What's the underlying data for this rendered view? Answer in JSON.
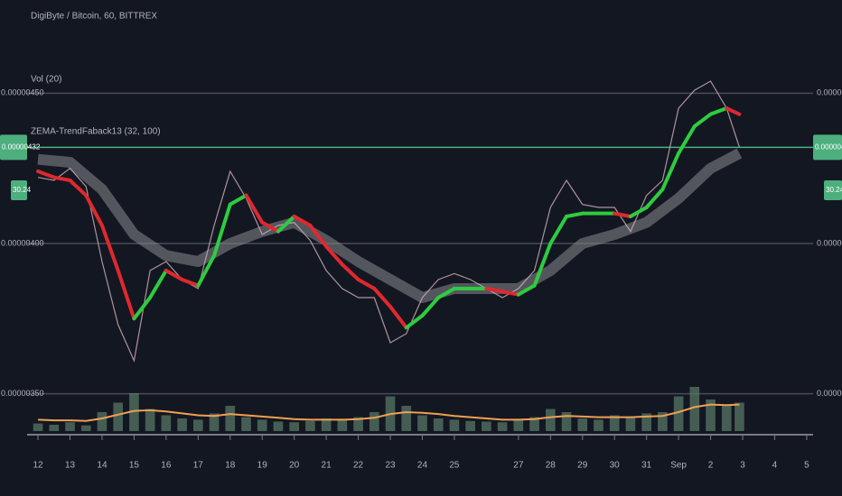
{
  "chart_data": {
    "type": "line",
    "title": "DigiByte / Bitcoin, 60, BITTREX",
    "volume_title": "Vol (20)",
    "indicator_title": "ZEMA-TrendFaback13 (32, 100)",
    "xlim": [
      -0.34,
      24.2
    ],
    "xticks": [
      {
        "value": 0,
        "label": "12"
      },
      {
        "value": 1,
        "label": "13"
      },
      {
        "value": 2,
        "label": "14"
      },
      {
        "value": 3,
        "label": "15"
      },
      {
        "value": 4,
        "label": "16"
      },
      {
        "value": 5,
        "label": "17"
      },
      {
        "value": 6,
        "label": "18"
      },
      {
        "value": 7,
        "label": "19"
      },
      {
        "value": 8,
        "label": "20"
      },
      {
        "value": 9,
        "label": "21"
      },
      {
        "value": 10,
        "label": "22"
      },
      {
        "value": 11,
        "label": "23"
      },
      {
        "value": 12,
        "label": "24"
      },
      {
        "value": 13,
        "label": "25"
      },
      {
        "value": 15,
        "label": "27"
      },
      {
        "value": 16,
        "label": "28"
      },
      {
        "value": 17,
        "label": "29"
      },
      {
        "value": 18,
        "label": "30"
      },
      {
        "value": 19,
        "label": "31"
      },
      {
        "value": 20,
        "label": "Sep"
      },
      {
        "value": 21,
        "label": "2"
      },
      {
        "value": 22,
        "label": "3"
      },
      {
        "value": 23,
        "label": "4"
      },
      {
        "value": 24,
        "label": "5"
      }
    ],
    "ylim": [
      3.37e-06,
      4.81e-06
    ],
    "yticks": [
      {
        "value": 4.5e-06,
        "label": "0.00000450"
      },
      {
        "value": 4e-06,
        "label": "0.00000400"
      },
      {
        "value": 3.5e-06,
        "label": "0.00000350"
      }
    ],
    "grid": true,
    "last_price": {
      "value": 4.32e-06,
      "label": "0.00000432",
      "color": "#4caf7d"
    },
    "last_volume": "30.24",
    "x": [
      0,
      0.5,
      1,
      1.5,
      2,
      2.5,
      3,
      3.5,
      4,
      4.5,
      5,
      5.5,
      6,
      6.5,
      7,
      7.5,
      8,
      8.5,
      9,
      9.5,
      10,
      10.5,
      11,
      11.5,
      12,
      12.5,
      13,
      13.5,
      14,
      14.5,
      15,
      15.5,
      16,
      16.5,
      17,
      17.5,
      18,
      18.5,
      19,
      19.5,
      20,
      20.5,
      21,
      21.5,
      21.9
    ],
    "series": [
      {
        "name": "DigiByte / Bitcoin",
        "color": "#c9a9b0",
        "values": [
          4.22e-06,
          4.21e-06,
          4.25e-06,
          4.19e-06,
          3.94e-06,
          3.73e-06,
          3.61e-06,
          3.91e-06,
          3.94e-06,
          3.88e-06,
          3.85e-06,
          4.06e-06,
          4.24e-06,
          4.15e-06,
          4.03e-06,
          4.06e-06,
          4.07e-06,
          4.01e-06,
          3.91e-06,
          3.85e-06,
          3.82e-06,
          3.82e-06,
          3.67e-06,
          3.7e-06,
          3.82e-06,
          3.88e-06,
          3.9e-06,
          3.88e-06,
          3.85e-06,
          3.82e-06,
          3.85e-06,
          3.91e-06,
          4.12e-06,
          4.21e-06,
          4.13e-06,
          4.12e-06,
          4.12e-06,
          4.04e-06,
          4.16e-06,
          4.21e-06,
          4.45e-06,
          4.51e-06,
          4.54e-06,
          4.45e-06,
          4.32e-06
        ]
      },
      {
        "name": "ZEMA fast",
        "up_color": "#2ecc40",
        "down_color": "#e0282e",
        "values": [
          4.24e-06,
          4.22e-06,
          4.21e-06,
          4.16e-06,
          4.06e-06,
          3.91e-06,
          3.75e-06,
          3.82e-06,
          3.91e-06,
          3.88e-06,
          3.86e-06,
          3.96e-06,
          4.13e-06,
          4.16e-06,
          4.07e-06,
          4.04e-06,
          4.09e-06,
          4.06e-06,
          3.99e-06,
          3.93e-06,
          3.88e-06,
          3.85e-06,
          3.79e-06,
          3.72e-06,
          3.76e-06,
          3.82e-06,
          3.85e-06,
          3.85e-06,
          3.85e-06,
          3.84e-06,
          3.83e-06,
          3.86e-06,
          4e-06,
          4.09e-06,
          4.1e-06,
          4.1e-06,
          4.1e-06,
          4.09e-06,
          4.12e-06,
          4.18e-06,
          4.3e-06,
          4.39e-06,
          4.43e-06,
          4.45e-06,
          4.43e-06
        ]
      },
      {
        "name": "ZEMA slow",
        "color": "#8a8a8f",
        "x": [
          0,
          1,
          2,
          3,
          4,
          5,
          6,
          7,
          8,
          9,
          10,
          11,
          12,
          13,
          14,
          15,
          16,
          17,
          18,
          19,
          20,
          21,
          21.9
        ],
        "values": [
          4.28e-06,
          4.27e-06,
          4.18e-06,
          4.03e-06,
          3.96e-06,
          3.94e-06,
          4e-06,
          4.04e-06,
          4.07e-06,
          4.01e-06,
          3.94e-06,
          3.88e-06,
          3.82e-06,
          3.85e-06,
          3.85e-06,
          3.85e-06,
          3.91e-06,
          4e-06,
          4.03e-06,
          4.07e-06,
          4.15e-06,
          4.25e-06,
          4.3e-06
        ]
      }
    ],
    "volume": {
      "vlim": [
        0,
        100
      ],
      "color": "#5b7d6a",
      "ma_color": "#f0a050",
      "values": [
        12,
        10,
        14,
        9,
        30,
        45,
        60,
        35,
        25,
        20,
        18,
        28,
        40,
        22,
        18,
        15,
        14,
        16,
        20,
        18,
        22,
        30,
        55,
        40,
        25,
        20,
        18,
        16,
        15,
        14,
        18,
        22,
        35,
        30,
        20,
        18,
        25,
        22,
        28,
        30,
        55,
        70,
        50,
        40,
        45
      ],
      "ma": [
        18,
        17,
        17,
        16,
        20,
        26,
        32,
        33,
        31,
        28,
        25,
        24,
        27,
        25,
        23,
        21,
        19,
        18,
        18,
        18,
        19,
        21,
        27,
        30,
        29,
        27,
        24,
        22,
        20,
        18,
        18,
        19,
        22,
        24,
        23,
        22,
        22,
        22,
        23,
        24,
        30,
        38,
        42,
        41,
        42
      ]
    }
  }
}
